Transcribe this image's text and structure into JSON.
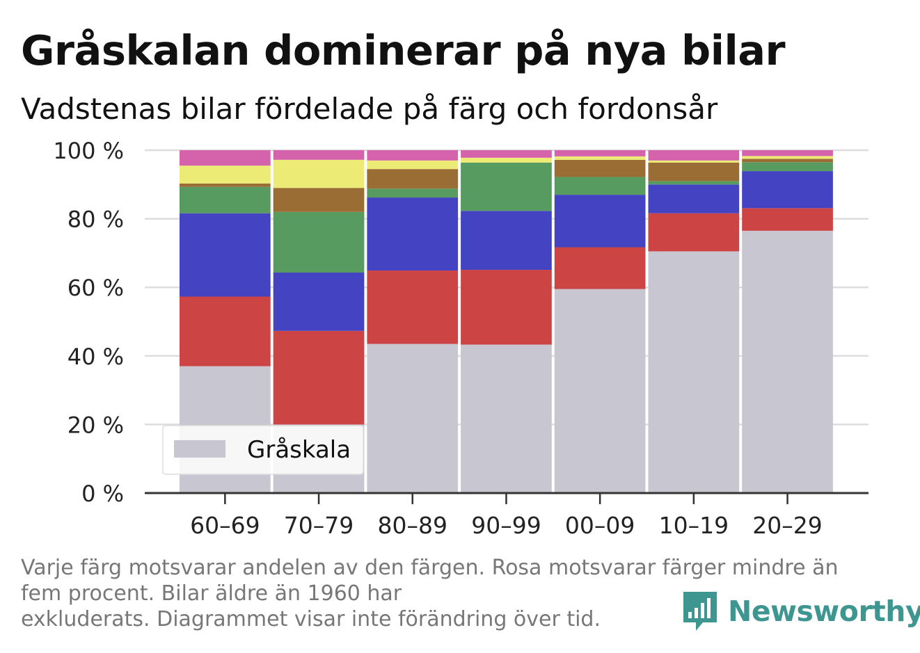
{
  "title": "Gråskalan dominerar på nya bilar",
  "subtitle": "Vadstenas bilar fördelade på färg och fordonsår",
  "footnote": {
    "line1": "Varje färg motsvarar andelen av den färgen. Rosa motsvarar färger mindre än",
    "line2": "fem procent. Bilar äldre än 1960 har",
    "line3": "exkluderats. Diagrammet visar inte förändring över tid."
  },
  "brand": "Newsworthy",
  "legend": {
    "label": "Gråskala",
    "color": "#c8c7d1"
  },
  "chart_data": {
    "type": "bar",
    "stacked": true,
    "categories": [
      "60–69",
      "70–79",
      "80–89",
      "90–99",
      "00–09",
      "10–19",
      "20–29"
    ],
    "ytick_labels": [
      "0 %",
      "20 %",
      "40 %",
      "60 %",
      "80 %",
      "100 %"
    ],
    "ylim": [
      0,
      100
    ],
    "grid": true,
    "legend_position": "bottom-left",
    "series": [
      {
        "color": "#c8c7d1",
        "values": [
          37,
          20,
          43.5,
          43.3,
          59.5,
          70.5,
          76.5
        ],
        "name": "Gråskala"
      },
      {
        "color": "#cc4444",
        "values": [
          20.3,
          27.3,
          21.4,
          21.8,
          12.2,
          11.1,
          6.6
        ]
      },
      {
        "color": "#4444c2",
        "values": [
          24.3,
          17,
          21.3,
          17.2,
          15.3,
          8.4,
          10.8
        ]
      },
      {
        "color": "#589b61",
        "values": [
          7.7,
          17.7,
          2.6,
          14.1,
          5.2,
          1.0,
          2.6
        ]
      },
      {
        "color": "#9a6d34",
        "values": [
          1.0,
          7.0,
          5.7,
          0,
          5.0,
          5.4,
          1.0
        ]
      },
      {
        "color": "#ebeb75",
        "values": [
          5.2,
          8.2,
          2.5,
          1.4,
          1.0,
          0.6,
          0.8
        ]
      },
      {
        "color": "#d463ab",
        "values": [
          4.5,
          2.8,
          3.0,
          2.2,
          1.8,
          3.0,
          1.7
        ]
      }
    ]
  }
}
